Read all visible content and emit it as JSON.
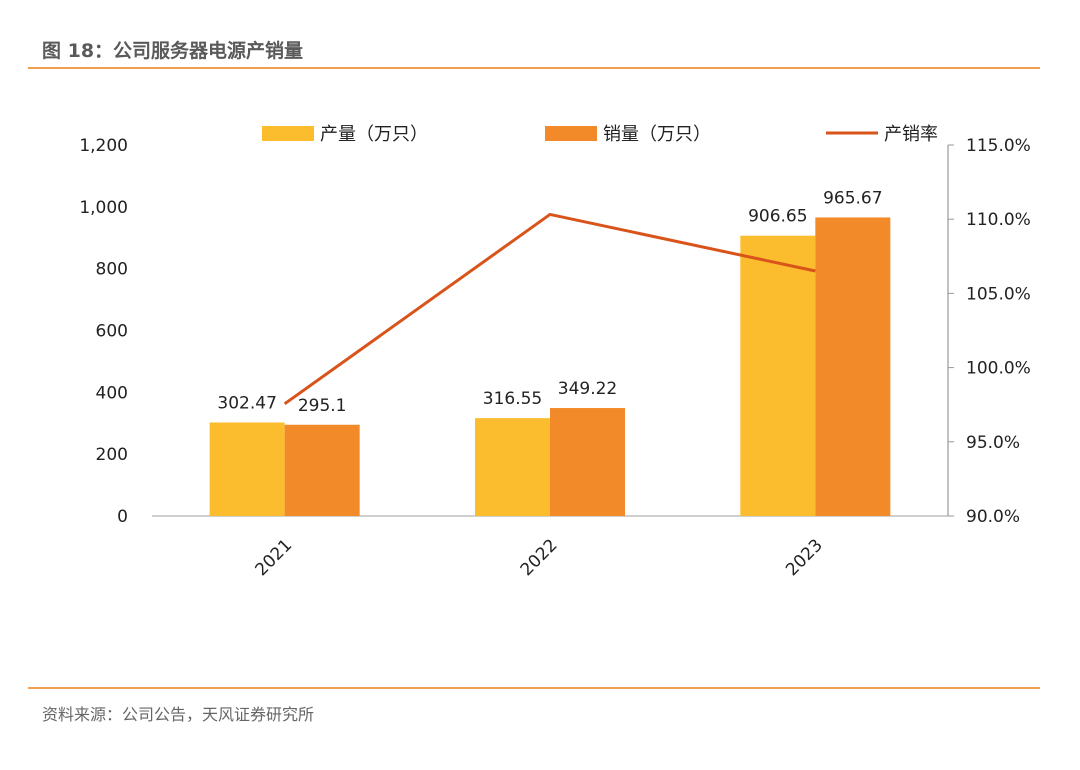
{
  "title": "图 18：公司服务器电源产销量",
  "source": "资料来源：公司公告，天风证券研究所",
  "chart_data": {
    "type": "bar+line",
    "categories": [
      "2021",
      "2022",
      "2023"
    ],
    "series": [
      {
        "name": "产量（万只）",
        "type": "bar",
        "axis": "left",
        "color": "#FBBC2D",
        "values": [
          302.47,
          316.55,
          906.65
        ],
        "labels": [
          "302.47",
          "316.55",
          "906.65"
        ]
      },
      {
        "name": "销量（万只）",
        "type": "bar",
        "axis": "left",
        "color": "#F28A2A",
        "values": [
          295.1,
          349.22,
          965.67
        ],
        "labels": [
          "295.1",
          "349.22",
          "965.67"
        ]
      },
      {
        "name": "产销率",
        "type": "line",
        "axis": "right",
        "color": "#D9541A",
        "values": [
          97.56,
          110.32,
          106.51
        ]
      }
    ],
    "left_axis": {
      "ylim": [
        0,
        1200
      ],
      "ticks": [
        "0",
        "200",
        "400",
        "600",
        "800",
        "1,000",
        "1,200"
      ]
    },
    "right_axis": {
      "ylim": [
        90,
        115
      ],
      "unit": "%",
      "ticks": [
        "90.0%",
        "95.0%",
        "100.0%",
        "105.0%",
        "110.0%",
        "115.0%"
      ]
    },
    "legend": "top",
    "grid": false
  }
}
